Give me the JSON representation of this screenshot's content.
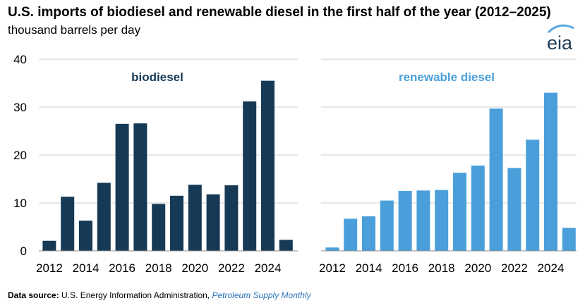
{
  "title": "U.S. imports of biodiesel and renewable diesel in the first half of the year (2012–2025)",
  "subtitle": "thousand barrels per day",
  "logo_text": "eia",
  "footer": {
    "label": "Data source:",
    "source": "U.S. Energy Information Administration, ",
    "publication": "Petroleum Supply Monthly"
  },
  "colors": {
    "biodiesel": "#163a56",
    "renewable": "#4a9fdb",
    "grid": "#cfcfcf",
    "logo_arc": "#5aa7df"
  },
  "chart_data": [
    {
      "type": "bar",
      "title": "biodiesel",
      "x": [
        2012,
        2013,
        2014,
        2015,
        2016,
        2017,
        2018,
        2019,
        2020,
        2021,
        2022,
        2023,
        2024,
        2025
      ],
      "values": [
        2.1,
        11.3,
        6.3,
        14.2,
        26.5,
        26.6,
        9.8,
        11.5,
        13.8,
        11.8,
        13.7,
        31.2,
        35.5,
        2.3
      ],
      "tick_labels": [
        "2012",
        "2014",
        "2016",
        "2018",
        "2020",
        "2022",
        "2024"
      ],
      "y_ticks": [
        "0",
        "10",
        "20",
        "30",
        "40"
      ],
      "ylim": [
        0,
        40
      ],
      "grid": true
    },
    {
      "type": "bar",
      "title": "renewable diesel",
      "x": [
        2012,
        2013,
        2014,
        2015,
        2016,
        2017,
        2018,
        2019,
        2020,
        2021,
        2022,
        2023,
        2024,
        2025
      ],
      "values": [
        0.7,
        6.7,
        7.2,
        10.5,
        12.5,
        12.6,
        12.7,
        16.3,
        17.8,
        29.7,
        17.3,
        23.2,
        33.0,
        4.8
      ],
      "tick_labels": [
        "2012",
        "2014",
        "2016",
        "2018",
        "2020",
        "2022",
        "2024"
      ],
      "ylim": [
        0,
        40
      ],
      "grid": true
    }
  ]
}
